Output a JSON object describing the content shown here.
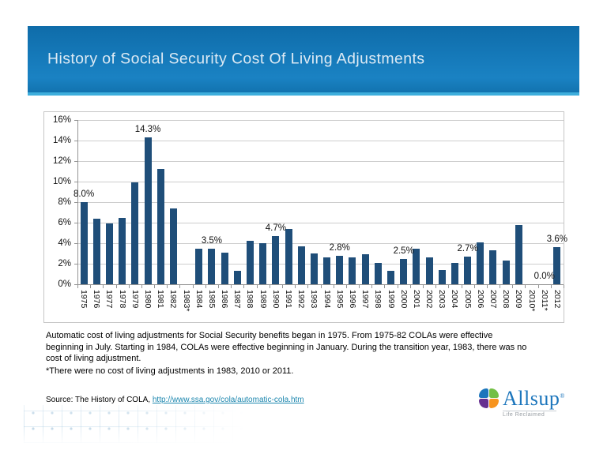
{
  "slide": {
    "title": "History of Social Security Cost Of Living Adjustments"
  },
  "chart_data": {
    "type": "bar",
    "title": "",
    "xlabel": "",
    "ylabel": "",
    "ylim": [
      0,
      16
    ],
    "ytick_step": 2,
    "ytick_labels": [
      "0%",
      "2%",
      "4%",
      "6%",
      "8%",
      "10%",
      "12%",
      "14%",
      "16%"
    ],
    "grid": true,
    "bar_color": "#1F4E79",
    "categories": [
      "1975",
      "1976",
      "1977",
      "1978",
      "1979",
      "1980",
      "1981",
      "1982",
      "1983*",
      "1984",
      "1985",
      "1986",
      "1987",
      "1988",
      "1989",
      "1990",
      "1991",
      "1992",
      "1993",
      "1994",
      "1995",
      "1996",
      "1997",
      "1998",
      "1999",
      "2000",
      "2001",
      "2002",
      "2003",
      "2004",
      "2005",
      "2006",
      "2007",
      "2008",
      "2009",
      "2010*",
      "2011*",
      "2012"
    ],
    "values": [
      8.0,
      6.4,
      5.9,
      6.5,
      9.9,
      14.3,
      11.2,
      7.4,
      0.0,
      3.5,
      3.5,
      3.1,
      1.3,
      4.2,
      4.0,
      4.7,
      5.4,
      3.7,
      3.0,
      2.6,
      2.8,
      2.6,
      2.9,
      2.1,
      1.3,
      2.5,
      3.5,
      2.6,
      1.4,
      2.1,
      2.7,
      4.1,
      3.3,
      2.3,
      5.8,
      0.0,
      0.0,
      3.6
    ],
    "data_labels": [
      {
        "index": 0,
        "text": "8.0%"
      },
      {
        "index": 5,
        "text": "14.3%"
      },
      {
        "index": 10,
        "text": "3.5%"
      },
      {
        "index": 15,
        "text": "4.7%"
      },
      {
        "index": 20,
        "text": "2.8%"
      },
      {
        "index": 25,
        "text": "2.5%"
      },
      {
        "index": 30,
        "text": "2.7%"
      },
      {
        "index": 36,
        "text": "0.0%"
      },
      {
        "index": 37,
        "text": "3.6%"
      }
    ]
  },
  "notes": {
    "paragraph": "Automatic cost of living adjustments for Social Security benefits began in 1975. From 1975-82 COLAs were effective beginning in July. Starting in 1984, COLAs were effective beginning in January. During the transition year, 1983, there was no cost of living adjustment.",
    "footnote": "*There were no cost of living adjustments in 1983, 2010 or 2011."
  },
  "source": {
    "label": "Source: The History of COLA, ",
    "link_text": "http://www.ssa.gov/cola/automatic-cola.htm"
  },
  "logo": {
    "brand": "Allsup",
    "registered": "®",
    "tagline": "Life Reclaimed",
    "colors": {
      "blue": "#1B75BC",
      "green": "#72BF44",
      "purple": "#673090",
      "orange": "#F7941E"
    }
  },
  "theme": {
    "header_blue": "#1173AF",
    "header_strip": "#3EAEDC",
    "title_color": "#DDEAF4",
    "link_color": "#1B86AE",
    "gridline_color": "#CDCDCD"
  }
}
